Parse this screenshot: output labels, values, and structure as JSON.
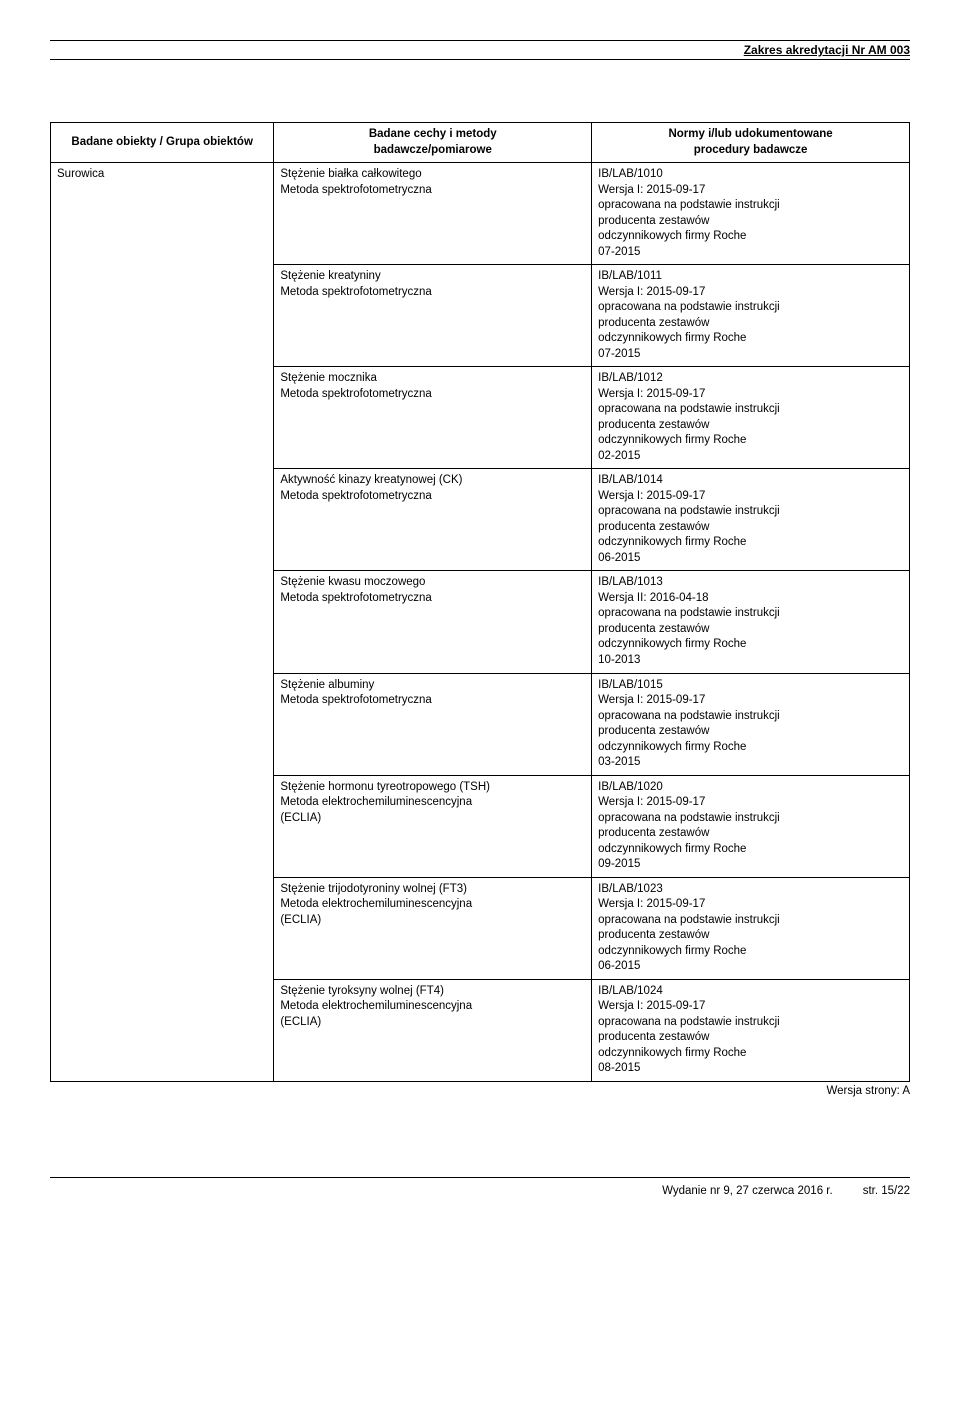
{
  "header": {
    "title": "Zakres akredytacji Nr AM 003"
  },
  "table": {
    "head": {
      "c1": "Badane obiekty / Grupa obiektów",
      "c2_l1": "Badane cechy i metody",
      "c2_l2": "badawcze/pomiarowe",
      "c3_l1": "Normy i/lub udokumentowane",
      "c3_l2": "procedury badawcze"
    },
    "subject": "Surowica",
    "rows": [
      {
        "method_l1": "Stężenie białka całkowitego",
        "method_l2": "Metoda spektrofotometryczna",
        "method_l3": "",
        "norm_l1": "IB/LAB/1010",
        "norm_l2": "Wersja I: 2015-09-17",
        "norm_l3": "opracowana na podstawie instrukcji",
        "norm_l4": "producenta zestawów",
        "norm_l5": "odczynnikowych firmy Roche",
        "norm_l6": "07-2015"
      },
      {
        "method_l1": "Stężenie kreatyniny",
        "method_l2": "Metoda spektrofotometryczna",
        "method_l3": "",
        "norm_l1": "IB/LAB/1011",
        "norm_l2": "Wersja I: 2015-09-17",
        "norm_l3": "opracowana na podstawie instrukcji",
        "norm_l4": "producenta zestawów",
        "norm_l5": "odczynnikowych firmy Roche",
        "norm_l6": "07-2015"
      },
      {
        "method_l1": "Stężenie mocznika",
        "method_l2": "Metoda spektrofotometryczna",
        "method_l3": "",
        "norm_l1": "IB/LAB/1012",
        "norm_l2": "Wersja I: 2015-09-17",
        "norm_l3": "opracowana na podstawie instrukcji",
        "norm_l4": "producenta zestawów",
        "norm_l5": "odczynnikowych firmy Roche",
        "norm_l6": "02-2015"
      },
      {
        "method_l1": "Aktywność kinazy kreatynowej (CK)",
        "method_l2": "Metoda spektrofotometryczna",
        "method_l3": "",
        "norm_l1": "IB/LAB/1014",
        "norm_l2": "Wersja I: 2015-09-17",
        "norm_l3": "opracowana na podstawie instrukcji",
        "norm_l4": "producenta zestawów",
        "norm_l5": "odczynnikowych firmy Roche",
        "norm_l6": "06-2015"
      },
      {
        "method_l1": "Stężenie kwasu moczowego",
        "method_l2": "Metoda spektrofotometryczna",
        "method_l3": "",
        "norm_l1": "IB/LAB/1013",
        "norm_l2": "Wersja II: 2016-04-18",
        "norm_l3": "opracowana na podstawie instrukcji",
        "norm_l4": "producenta zestawów",
        "norm_l5": "odczynnikowych firmy Roche",
        "norm_l6": "10-2013"
      },
      {
        "method_l1": "Stężenie albuminy",
        "method_l2": "Metoda spektrofotometryczna",
        "method_l3": "",
        "norm_l1": "IB/LAB/1015",
        "norm_l2": "Wersja I: 2015-09-17",
        "norm_l3": "opracowana na podstawie instrukcji",
        "norm_l4": "producenta zestawów",
        "norm_l5": "odczynnikowych firmy Roche",
        "norm_l6": "03-2015"
      },
      {
        "method_l1": "Stężenie hormonu  tyreotropowego (TSH)",
        "method_l2": "Metoda  elektrochemiluminescencyjna",
        "method_l3": "(ECLIA)",
        "norm_l1": "IB/LAB/1020",
        "norm_l2": "Wersja I: 2015-09-17",
        "norm_l3": "opracowana na podstawie instrukcji",
        "norm_l4": "producenta zestawów",
        "norm_l5": "odczynnikowych firmy Roche",
        "norm_l6": "09-2015"
      },
      {
        "method_l1": "Stężenie trijodotyroniny wolnej (FT3)",
        "method_l2": "Metoda elektrochemiluminescencyjna",
        "method_l3": "(ECLIA)",
        "norm_l1": "IB/LAB/1023",
        "norm_l2": "Wersja I: 2015-09-17",
        "norm_l3": "opracowana na podstawie instrukcji",
        "norm_l4": "producenta zestawów",
        "norm_l5": "odczynnikowych firmy Roche",
        "norm_l6": "06-2015"
      },
      {
        "method_l1": "Stężenie tyroksyny wolnej (FT4)",
        "method_l2": "Metoda  elektrochemiluminescencyjna",
        "method_l3": "(ECLIA)",
        "norm_l1": "IB/LAB/1024",
        "norm_l2": "Wersja I: 2015-09-17",
        "norm_l3": "opracowana na podstawie instrukcji",
        "norm_l4": "producenta zestawów",
        "norm_l5": "odczynnikowych firmy Roche",
        "norm_l6": "08-2015"
      }
    ]
  },
  "version_note": "Wersja strony: A",
  "footer": {
    "issue": "Wydanie nr 9, 27 czerwca 2016 r.",
    "page": "str. 15/22"
  }
}
